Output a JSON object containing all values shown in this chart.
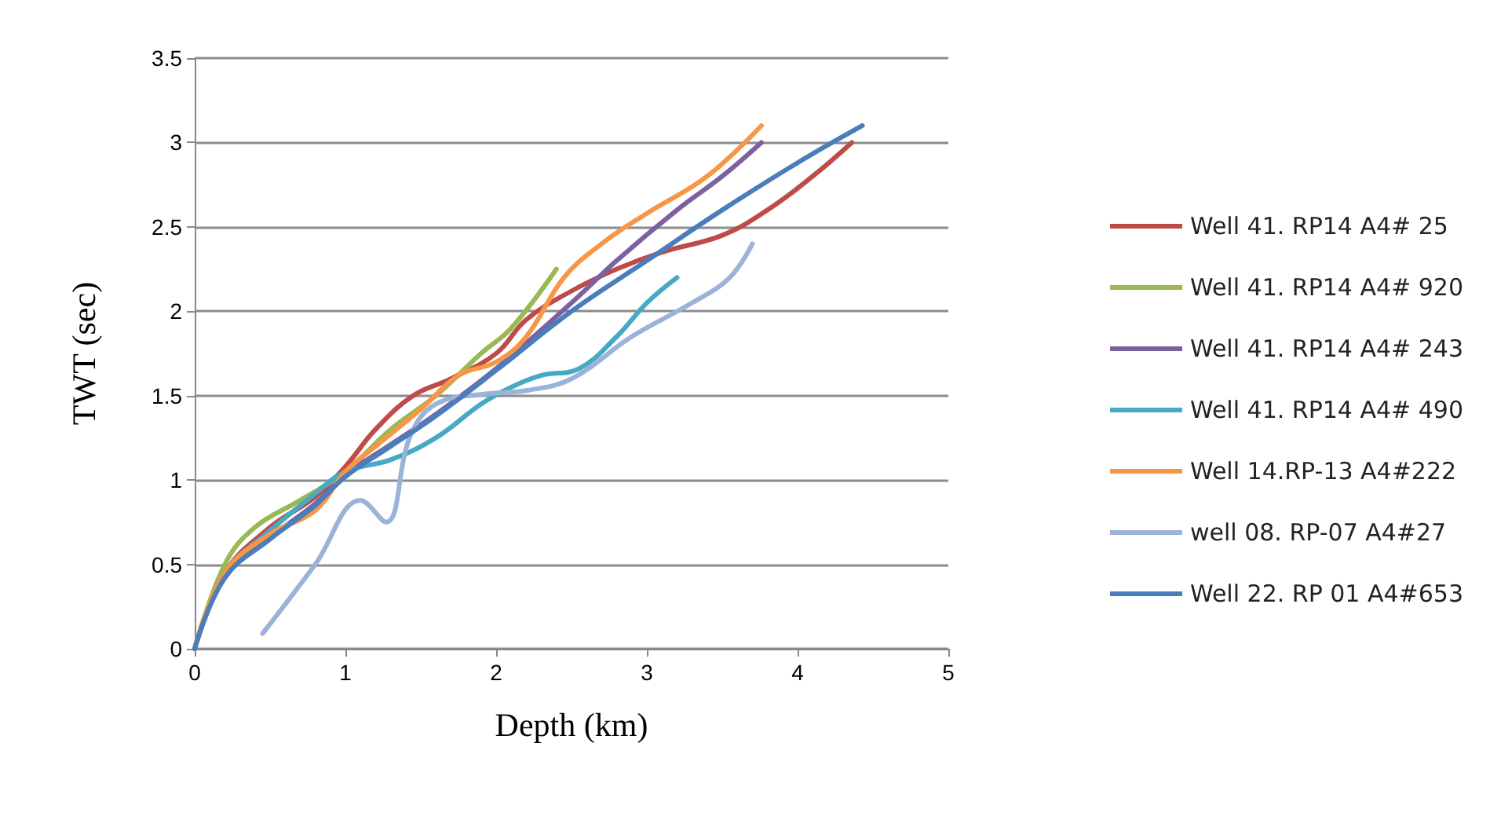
{
  "chart_data": {
    "type": "line",
    "xlabel": "Depth (km)",
    "ylabel": "TWT (sec)",
    "xlim": [
      0,
      5
    ],
    "xticks": [
      0,
      1,
      2,
      3,
      4,
      5
    ],
    "ylim": [
      0,
      3.5
    ],
    "yticks": [
      0,
      0.5,
      1,
      1.5,
      2,
      2.5,
      3,
      3.5
    ],
    "grid": "y",
    "legend": "right",
    "marker": "none",
    "line_style": "solid",
    "series": [
      {
        "name": "Well 41. RP14 A4# 25",
        "color": "#be4b48",
        "x": [
          0,
          0.2,
          0.5,
          0.8,
          1.0,
          1.2,
          1.45,
          1.7,
          2.0,
          2.2,
          2.5,
          2.8,
          3.1,
          3.5,
          3.8,
          4.1,
          4.36
        ],
        "values": [
          0,
          0.45,
          0.72,
          0.9,
          1.08,
          1.3,
          1.5,
          1.6,
          1.75,
          1.95,
          2.12,
          2.25,
          2.35,
          2.45,
          2.6,
          2.8,
          3.0
        ]
      },
      {
        "name": "Well 41. RP14 A4# 920",
        "color": "#98b954",
        "x": [
          0,
          0.2,
          0.4,
          0.7,
          1.0,
          1.3,
          1.6,
          1.9,
          2.1,
          2.4
        ],
        "values": [
          0,
          0.5,
          0.72,
          0.88,
          1.05,
          1.3,
          1.5,
          1.75,
          1.9,
          2.25
        ]
      },
      {
        "name": "Well 41. RP14 A4# 243",
        "color": "#7d60a0",
        "x": [
          0,
          0.2,
          0.5,
          0.8,
          1.0,
          1.3,
          1.6,
          2.0,
          2.5,
          2.8,
          3.2,
          3.5,
          3.76
        ],
        "values": [
          0,
          0.43,
          0.66,
          0.86,
          1.03,
          1.21,
          1.39,
          1.66,
          2.05,
          2.3,
          2.6,
          2.8,
          3.0
        ]
      },
      {
        "name": "Well 41. RP14 A4# 490",
        "color": "#46aac5",
        "x": [
          0,
          0.2,
          0.5,
          0.8,
          1.0,
          1.3,
          1.6,
          1.9,
          2.1,
          2.3,
          2.55,
          2.8,
          3.0,
          3.2
        ],
        "values": [
          0,
          0.45,
          0.7,
          0.92,
          1.05,
          1.12,
          1.25,
          1.45,
          1.55,
          1.62,
          1.66,
          1.85,
          2.05,
          2.2
        ]
      },
      {
        "name": "Well 14.RP-13 A4#222",
        "color": "#f79646",
        "x": [
          0,
          0.2,
          0.5,
          0.8,
          1.0,
          1.2,
          1.5,
          1.75,
          2.0,
          2.2,
          2.45,
          2.7,
          3.0,
          3.4,
          3.76
        ],
        "values": [
          0,
          0.45,
          0.68,
          0.82,
          1.05,
          1.2,
          1.42,
          1.62,
          1.7,
          1.85,
          2.2,
          2.4,
          2.58,
          2.8,
          3.1
        ]
      },
      {
        "name": "well 08. RP-07 A4#27",
        "color": "#9bb2d9",
        "x": [
          0.45,
          0.8,
          1.1,
          1.27,
          1.43,
          1.6,
          1.93,
          2.2,
          2.5,
          2.9,
          3.3,
          3.55,
          3.7
        ],
        "values": [
          0.09,
          0.5,
          0.88,
          0.75,
          1.26,
          1.45,
          1.51,
          1.53,
          1.6,
          1.85,
          2.05,
          2.2,
          2.4
        ]
      },
      {
        "name": "Well 22. RP 01 A4#653",
        "color": "#4a7ebb",
        "x": [
          0,
          0.2,
          0.5,
          0.8,
          1.0,
          1.3,
          1.6,
          2.0,
          2.5,
          3.0,
          3.5,
          4.0,
          4.43
        ],
        "values": [
          0,
          0.42,
          0.65,
          0.85,
          1.02,
          1.2,
          1.38,
          1.65,
          2.0,
          2.3,
          2.6,
          2.88,
          3.1
        ]
      }
    ]
  }
}
